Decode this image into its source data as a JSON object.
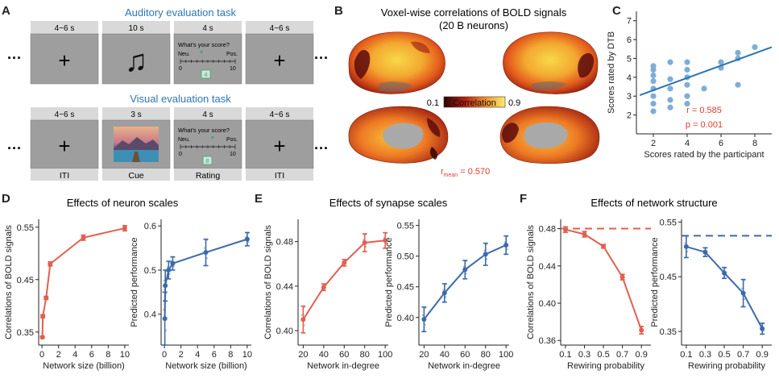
{
  "panelA": {
    "letter": "A",
    "auditory_title": "Auditory evaluation task",
    "visual_title": "Visual evaluation task",
    "ellipsis": "···",
    "fixation": "+",
    "note_glyph": "♫",
    "auditory_durations": [
      "4~6 s",
      "10 s",
      "4 s",
      "4~6 s"
    ],
    "visual_durations": [
      "4~6 s",
      "3 s",
      "4 s",
      "4~6 s"
    ],
    "question": "What's your score?",
    "neg": "Neu.",
    "pos": "Pos.",
    "scale_min": "0",
    "scale_max": "10",
    "auditory_score": "4",
    "visual_score": "8",
    "phase_labels": [
      "ITI",
      "Cue",
      "Rating",
      "ITI"
    ],
    "colors": {
      "title": "#2e75b6",
      "box": "#9e9e9e",
      "header": "#d9d9d9",
      "marker": "#3aa57a"
    }
  },
  "panelB": {
    "letter": "B",
    "title_line1": "Voxel-wise correlations of BOLD signals",
    "title_line2": "(20 B neurons)",
    "colorbar_min": "0.1",
    "colorbar_max": "0.9",
    "colorbar_label": "Correlation",
    "rmean_symbol": "r",
    "rmean_sub": "mean",
    "rmean_value": " = 0.570",
    "colors": {
      "low": "#5a0c0c",
      "mid": "#e8541c",
      "high": "#f7e04a",
      "medial": "#a9a9a9",
      "stat": "#e03c31"
    }
  },
  "panelC": {
    "letter": "C",
    "chart_data": {
      "type": "scatter",
      "xlabel": "Scores rated by the participant",
      "ylabel": "Scores rated by DTB",
      "xlim": [
        1,
        9
      ],
      "ylim": [
        1,
        7.5
      ],
      "xticks": [
        2,
        4,
        6,
        8
      ],
      "yticks": [
        2,
        3,
        4,
        5,
        6,
        7
      ],
      "points": [
        [
          2,
          2.2
        ],
        [
          2,
          2.6
        ],
        [
          2,
          3.0
        ],
        [
          2,
          3.4
        ],
        [
          2,
          3.8
        ],
        [
          2,
          4.1
        ],
        [
          2,
          4.4
        ],
        [
          2,
          4.6
        ],
        [
          3,
          2.4
        ],
        [
          3,
          2.8
        ],
        [
          3,
          3.4
        ],
        [
          3,
          3.9
        ],
        [
          3,
          4.8
        ],
        [
          4,
          2.6
        ],
        [
          4,
          3.0
        ],
        [
          4,
          3.6
        ],
        [
          4,
          4.0
        ],
        [
          4,
          4.4
        ],
        [
          4,
          4.8
        ],
        [
          5,
          3.4
        ],
        [
          6,
          4.5
        ],
        [
          6,
          4.8
        ],
        [
          7,
          3.6
        ],
        [
          7,
          5.0
        ],
        [
          7,
          5.3
        ],
        [
          8,
          5.6
        ]
      ],
      "fit": {
        "x": [
          1.2,
          9.0
        ],
        "y": [
          3.05,
          5.6
        ]
      },
      "r_text": "r = 0.585",
      "p_text": "p = 0.001",
      "colors": {
        "points": "#7fadd8",
        "line": "#2c73b0",
        "stat": "#e03c31"
      }
    }
  },
  "panelD": {
    "letter": "D",
    "title": "Effects of neuron scales",
    "chart_data": [
      {
        "type": "line",
        "xlabel": "Network size (billion)",
        "ylabel": "Correlations of BOLD signals",
        "xlim": [
          -0.4,
          10.5
        ],
        "ylim": [
          0.325,
          0.565
        ],
        "xticks": [
          0,
          2,
          4,
          6,
          8,
          10
        ],
        "yticks": [
          0.35,
          0.45,
          0.55
        ],
        "x": [
          0.05,
          0.1,
          0.5,
          1,
          5,
          10
        ],
        "y": [
          0.34,
          0.38,
          0.415,
          0.48,
          0.53,
          0.548
        ],
        "err": [
          0.002,
          0.003,
          0.003,
          0.004,
          0.005,
          0.005
        ],
        "color": "#e0604f"
      },
      {
        "type": "line",
        "xlabel": "Network size (billion)",
        "ylabel": "Predicted performance",
        "xlim": [
          -0.4,
          10.5
        ],
        "ylim": [
          0.33,
          0.615
        ],
        "xticks": [
          0,
          2,
          4,
          6,
          8,
          10
        ],
        "yticks": [
          0.4,
          0.5,
          0.6
        ],
        "x": [
          0.05,
          0.1,
          0.5,
          1,
          5,
          10
        ],
        "y": [
          0.39,
          0.465,
          0.5,
          0.515,
          0.54,
          0.57
        ],
        "err": [
          0.06,
          0.035,
          0.02,
          0.015,
          0.03,
          0.015
        ],
        "color": "#3b6aac"
      }
    ]
  },
  "panelE": {
    "letter": "E",
    "title": "Effects of synapse scales",
    "chart_data": [
      {
        "type": "line",
        "xlabel": "Network in-degree",
        "ylabel": "Correlations of BOLD signals",
        "xlim": [
          15,
          103
        ],
        "ylim": [
          0.387,
          0.5
        ],
        "xticks": [
          20,
          40,
          60,
          80,
          100
        ],
        "yticks": [
          0.4,
          0.44,
          0.48
        ],
        "x": [
          20,
          40,
          60,
          80,
          100
        ],
        "y": [
          0.41,
          0.439,
          0.461,
          0.479,
          0.481
        ],
        "err": [
          0.012,
          0.003,
          0.003,
          0.008,
          0.007
        ],
        "color": "#e0604f"
      },
      {
        "type": "line",
        "xlabel": "Network in-degree",
        "ylabel": "Predicted performance",
        "xlim": [
          15,
          103
        ],
        "ylim": [
          0.355,
          0.56
        ],
        "xticks": [
          20,
          40,
          60,
          80,
          100
        ],
        "yticks": [
          0.4,
          0.45,
          0.5,
          0.55
        ],
        "x": [
          20,
          40,
          60,
          80,
          100
        ],
        "y": [
          0.397,
          0.44,
          0.478,
          0.503,
          0.518
        ],
        "err": [
          0.02,
          0.015,
          0.015,
          0.018,
          0.015
        ],
        "color": "#3b6aac"
      }
    ]
  },
  "panelF": {
    "letter": "F",
    "title": "Effects of network structure",
    "chart_data": [
      {
        "type": "line",
        "xlabel": "Rewiring probability",
        "ylabel": "Correlations of BOLD signals",
        "xlim": [
          0.05,
          1.0
        ],
        "ylim": [
          0.355,
          0.49
        ],
        "xticks": [
          0.1,
          0.3,
          0.5,
          0.7,
          0.9
        ],
        "yticks": [
          0.36,
          0.4,
          0.44,
          0.48
        ],
        "x": [
          0.1,
          0.3,
          0.5,
          0.7,
          0.9
        ],
        "y": [
          0.479,
          0.474,
          0.461,
          0.428,
          0.371
        ],
        "err": [
          0.003,
          0.003,
          0.002,
          0.003,
          0.004
        ],
        "baseline": 0.48,
        "color": "#e0604f"
      },
      {
        "type": "line",
        "xlabel": "Rewiring probability",
        "ylabel": "Predicted performance",
        "xlim": [
          0.05,
          1.0
        ],
        "ylim": [
          0.325,
          0.555
        ],
        "xticks": [
          0.1,
          0.3,
          0.5,
          0.7,
          0.9
        ],
        "yticks": [
          0.35,
          0.45,
          0.55
        ],
        "x": [
          0.1,
          0.3,
          0.5,
          0.7,
          0.9
        ],
        "y": [
          0.505,
          0.495,
          0.457,
          0.42,
          0.355
        ],
        "err": [
          0.02,
          0.008,
          0.01,
          0.025,
          0.01
        ],
        "baseline": 0.525,
        "color": "#3b6aac"
      }
    ]
  }
}
